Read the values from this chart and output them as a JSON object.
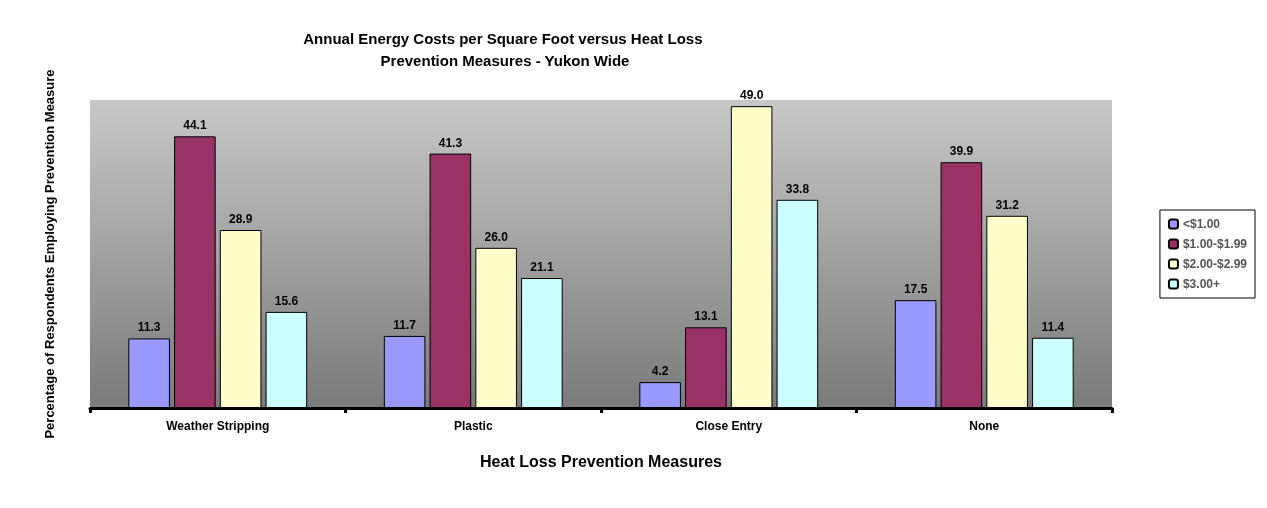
{
  "chart_data": {
    "type": "bar",
    "title": "Annual Energy Costs per Square Foot versus Heat Loss Prevention Measures - Yukon Wide",
    "xlabel": "Heat Loss Prevention Measures",
    "ylabel": "Percentage of Respondents Employing Prevention Measure",
    "categories": [
      "Weather Stripping",
      "Plastic",
      "Close Entry",
      "None"
    ],
    "series": [
      {
        "name": "<$1.00",
        "color": "#9999ff",
        "values": [
          11.3,
          11.7,
          4.2,
          17.5
        ],
        "value_labels": [
          "11.3",
          "11.7",
          "4.2",
          "17.5"
        ]
      },
      {
        "name": "$1.00-$1.99",
        "color": "#993366",
        "values": [
          44.1,
          41.3,
          13.1,
          39.9
        ],
        "value_labels": [
          "44.1",
          "41.3",
          "13.1",
          "39.9"
        ]
      },
      {
        "name": "$2.00-$2.99",
        "color": "#ffffcc",
        "values": [
          28.9,
          26.0,
          49.0,
          31.2
        ],
        "value_labels": [
          "28.9",
          "26.0",
          "49.0",
          "31.2"
        ]
      },
      {
        "name": "$3.00+",
        "color": "#ccffff",
        "values": [
          15.6,
          21.1,
          33.8,
          11.4
        ],
        "value_labels": [
          "15.6",
          "21.1",
          "33.8",
          "11.4"
        ]
      }
    ],
    "legend": "right"
  }
}
